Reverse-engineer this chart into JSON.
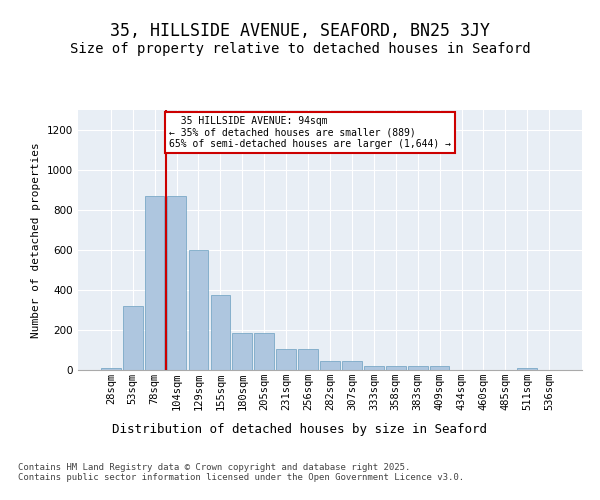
{
  "title": "35, HILLSIDE AVENUE, SEAFORD, BN25 3JY",
  "subtitle": "Size of property relative to detached houses in Seaford",
  "xlabel": "Distribution of detached houses by size in Seaford",
  "ylabel": "Number of detached properties",
  "categories": [
    "28sqm",
    "53sqm",
    "78sqm",
    "104sqm",
    "129sqm",
    "155sqm",
    "180sqm",
    "205sqm",
    "231sqm",
    "256sqm",
    "282sqm",
    "307sqm",
    "333sqm",
    "358sqm",
    "383sqm",
    "409sqm",
    "434sqm",
    "460sqm",
    "485sqm",
    "511sqm",
    "536sqm"
  ],
  "values": [
    12,
    320,
    870,
    870,
    600,
    375,
    185,
    185,
    105,
    105,
    45,
    45,
    20,
    18,
    18,
    18,
    0,
    0,
    0,
    12,
    0
  ],
  "bar_color": "#aec6df",
  "bar_edge_color": "#6a9fc0",
  "vline_color": "#cc0000",
  "vline_index": 3,
  "annotation_text": "  35 HILLSIDE AVENUE: 94sqm  \n← 35% of detached houses are smaller (889)\n65% of semi-detached houses are larger (1,644) →",
  "annotation_box_color": "#ffffff",
  "annotation_box_edge": "#cc0000",
  "ylim": [
    0,
    1300
  ],
  "yticks": [
    0,
    200,
    400,
    600,
    800,
    1000,
    1200
  ],
  "background_color": "#e8eef5",
  "grid_color": "#ffffff",
  "footer": "Contains HM Land Registry data © Crown copyright and database right 2025.\nContains public sector information licensed under the Open Government Licence v3.0.",
  "title_fontsize": 12,
  "subtitle_fontsize": 10,
  "xlabel_fontsize": 9,
  "ylabel_fontsize": 8,
  "tick_fontsize": 7.5,
  "footer_fontsize": 6.5
}
